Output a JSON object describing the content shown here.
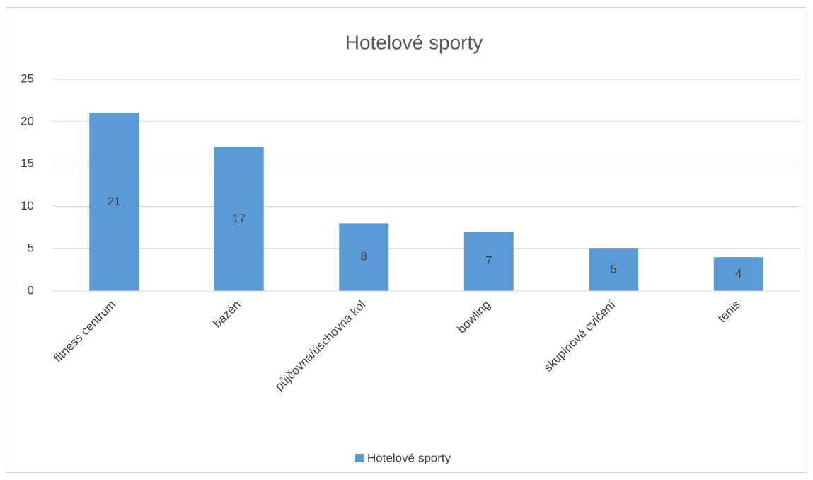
{
  "chart_data": {
    "type": "bar",
    "title": "Hotelové sporty",
    "categories": [
      "fitness centrum",
      "bazén",
      "půjčovna/úschovna kol",
      "bowling",
      "skupinové cvičení",
      "tenis"
    ],
    "series": [
      {
        "name": "Hotelové sporty",
        "color": "#5b9bd5",
        "values": [
          21,
          17,
          8,
          7,
          5,
          4
        ]
      }
    ],
    "ylim": [
      0,
      25
    ],
    "yticks": [
      0,
      5,
      10,
      15,
      20,
      25
    ],
    "grid": true,
    "legend": "bottom"
  }
}
